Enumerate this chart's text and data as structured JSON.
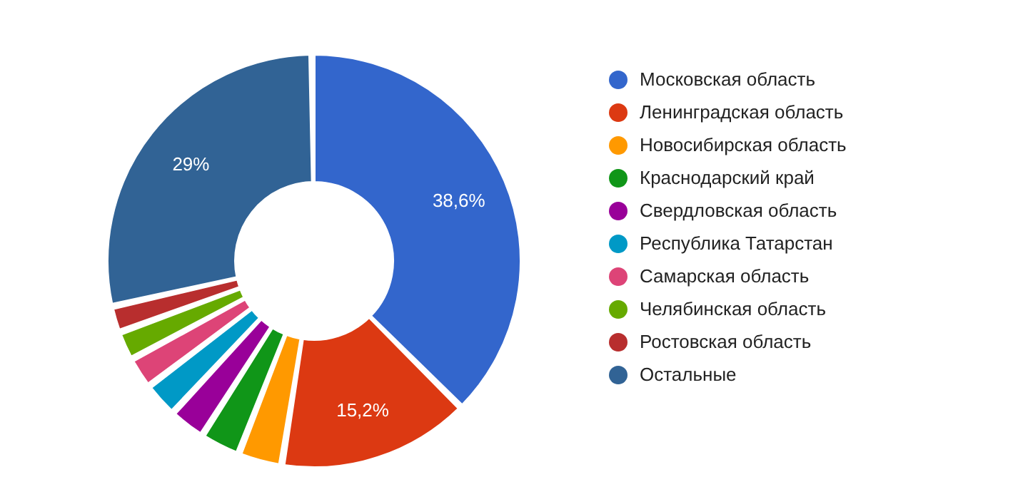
{
  "chart_data": {
    "type": "donut",
    "categories": [
      "Московская область",
      "Ленинградская область",
      "Новосибирская область",
      "Краснодарский край",
      "Свердловская область",
      "Республика Татарстан",
      "Самарская область",
      "Челябинская область",
      "Ростовская область",
      "Остальные"
    ],
    "values": [
      38.6,
      15.2,
      3.2,
      2.9,
      2.6,
      2.5,
      2.2,
      2.0,
      1.8,
      29
    ],
    "colors": [
      "#3366cc",
      "#dc3912",
      "#ff9900",
      "#109618",
      "#990099",
      "#0099c6",
      "#dd4477",
      "#66aa00",
      "#b82e2e",
      "#316395"
    ],
    "value_labels": [
      "38,6%",
      "15,2%",
      null,
      null,
      null,
      null,
      null,
      null,
      null,
      "29%"
    ],
    "legend": "right"
  }
}
